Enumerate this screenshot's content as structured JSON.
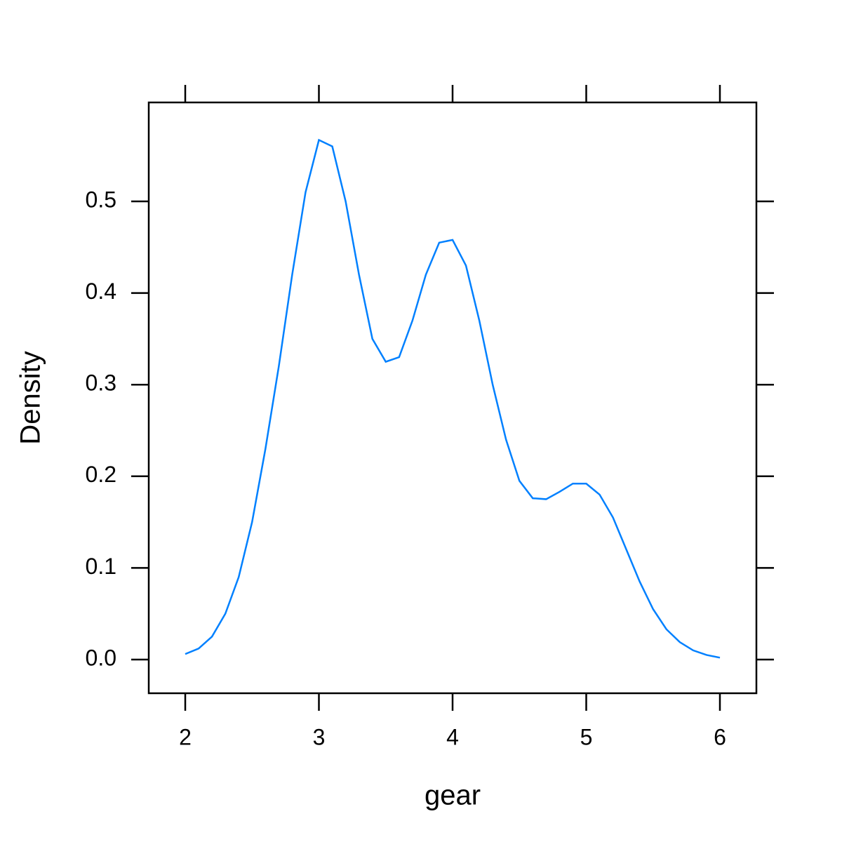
{
  "chart_data": {
    "type": "line",
    "xlabel": "gear",
    "ylabel": "Density",
    "x": [
      2.0,
      2.1,
      2.2,
      2.3,
      2.4,
      2.5,
      2.6,
      2.7,
      2.8,
      2.9,
      3.0,
      3.1,
      3.2,
      3.3,
      3.4,
      3.5,
      3.6,
      3.7,
      3.8,
      3.9,
      4.0,
      4.1,
      4.2,
      4.3,
      4.4,
      4.5,
      4.6,
      4.7,
      4.8,
      4.9,
      5.0,
      5.1,
      5.2,
      5.3,
      5.4,
      5.5,
      5.6,
      5.7,
      5.8,
      5.9,
      6.0
    ],
    "series": [
      {
        "color": "#0080ff",
        "values": [
          0.006,
          0.012,
          0.025,
          0.05,
          0.09,
          0.15,
          0.23,
          0.32,
          0.42,
          0.51,
          0.567,
          0.56,
          0.5,
          0.42,
          0.35,
          0.325,
          0.33,
          0.37,
          0.42,
          0.455,
          0.458,
          0.43,
          0.37,
          0.3,
          0.24,
          0.195,
          0.176,
          0.175,
          0.183,
          0.192,
          0.192,
          0.18,
          0.155,
          0.12,
          0.085,
          0.055,
          0.033,
          0.019,
          0.01,
          0.005,
          0.002
        ]
      }
    ],
    "xlim": [
      1.727,
      6.273
    ],
    "ylim": [
      -0.0368,
      0.608
    ],
    "xticks": [
      2,
      3,
      4,
      5,
      6
    ],
    "yticks": [
      {
        "value": 0,
        "label": "0.0"
      },
      0.1,
      0.2,
      0.3,
      0.4,
      0.5
    ]
  }
}
